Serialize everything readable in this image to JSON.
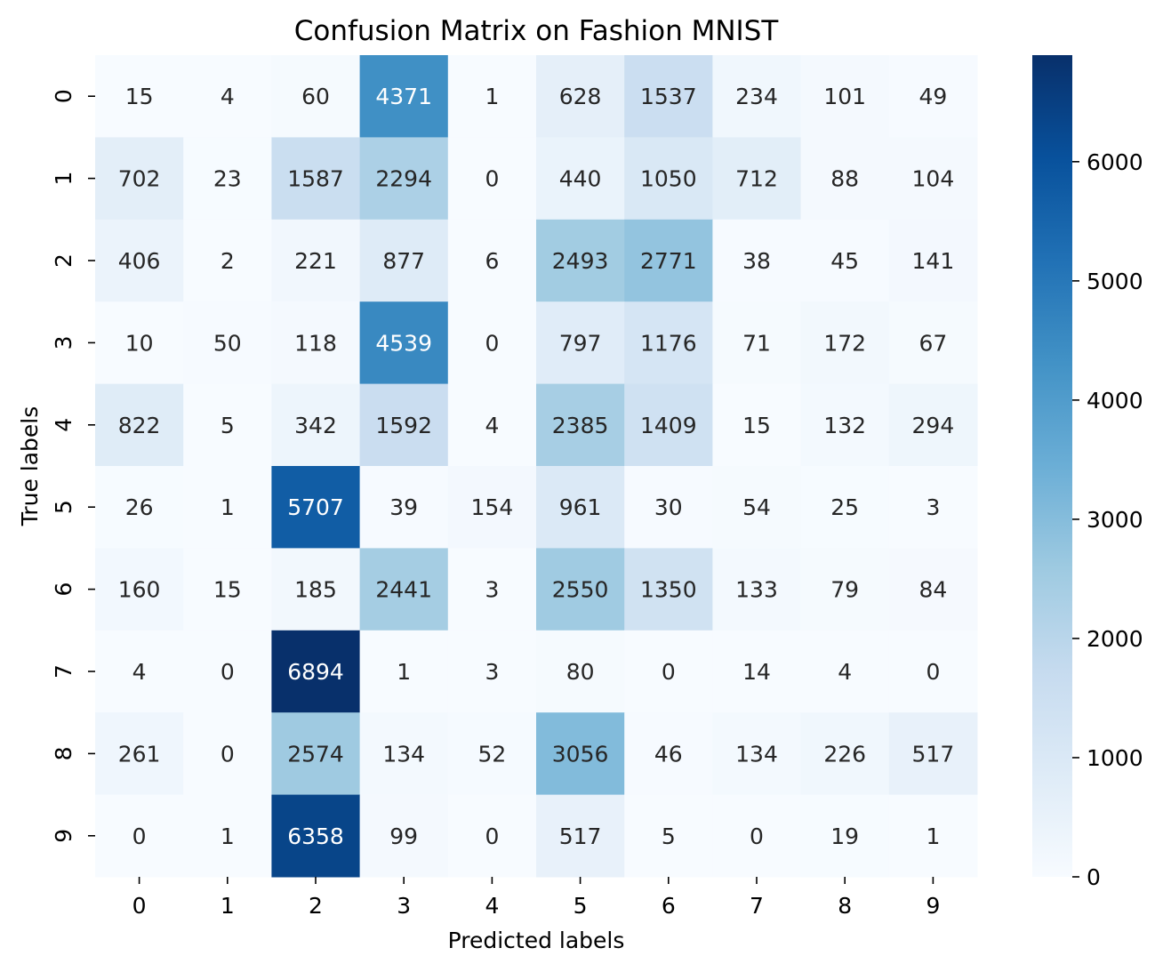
{
  "chart_data": {
    "type": "heatmap",
    "title": "Confusion Matrix on Fashion MNIST",
    "xlabel": "Predicted labels",
    "ylabel": "True labels",
    "x_categories": [
      "0",
      "1",
      "2",
      "3",
      "4",
      "5",
      "6",
      "7",
      "8",
      "9"
    ],
    "y_categories": [
      "0",
      "1",
      "2",
      "3",
      "4",
      "5",
      "6",
      "7",
      "8",
      "9"
    ],
    "values": [
      [
        15,
        4,
        60,
        4371,
        1,
        628,
        1537,
        234,
        101,
        49
      ],
      [
        702,
        23,
        1587,
        2294,
        0,
        440,
        1050,
        712,
        88,
        104
      ],
      [
        406,
        2,
        221,
        877,
        6,
        2493,
        2771,
        38,
        45,
        141
      ],
      [
        10,
        50,
        118,
        4539,
        0,
        797,
        1176,
        71,
        172,
        67
      ],
      [
        822,
        5,
        342,
        1592,
        4,
        2385,
        1409,
        15,
        132,
        294
      ],
      [
        26,
        1,
        5707,
        39,
        154,
        961,
        30,
        54,
        25,
        3
      ],
      [
        160,
        15,
        185,
        2441,
        3,
        2550,
        1350,
        133,
        79,
        84
      ],
      [
        4,
        0,
        6894,
        1,
        3,
        80,
        0,
        14,
        4,
        0
      ],
      [
        261,
        0,
        2574,
        134,
        52,
        3056,
        46,
        134,
        226,
        517
      ],
      [
        0,
        1,
        6358,
        99,
        0,
        517,
        5,
        0,
        19,
        1
      ]
    ],
    "colormap": "Blues",
    "colormap_stops": [
      "#f7fbff",
      "#deebf7",
      "#c6dbef",
      "#9ecae1",
      "#6baed6",
      "#4292c6",
      "#2171b5",
      "#08519c",
      "#08306b"
    ],
    "value_range": [
      0,
      6894
    ],
    "colorbar_ticks": [
      "0",
      "1000",
      "2000",
      "3000",
      "4000",
      "5000",
      "6000"
    ],
    "text_color_dark": "#262626",
    "text_color_light": "#ffffff"
  }
}
